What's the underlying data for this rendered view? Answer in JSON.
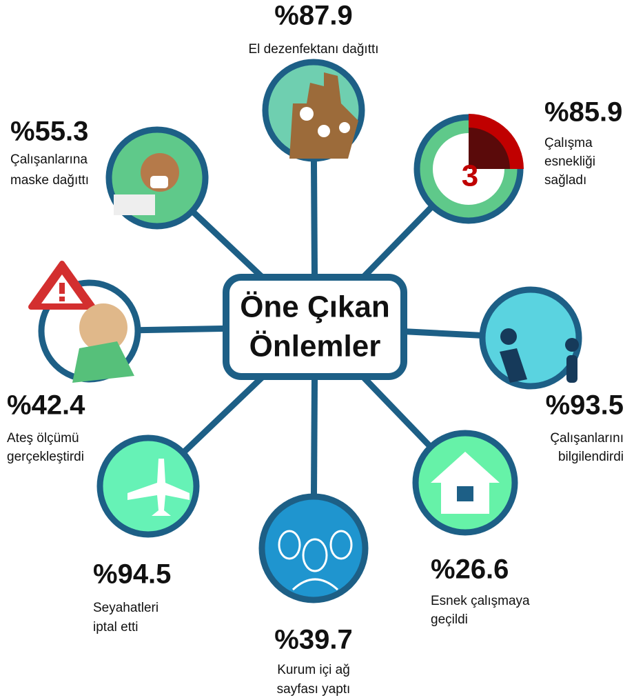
{
  "title_lines": [
    "Öne Çıkan",
    "Önlemler"
  ],
  "items": [
    {
      "value_label": "%87.9",
      "label_lines": [
        "El dezenfektanı dağıttı"
      ]
    },
    {
      "value_label": "%85.9",
      "label_lines": [
        "Çalışma",
        "esnekliği",
        "sağladı"
      ]
    },
    {
      "value_label": "%93.5",
      "label_lines": [
        "Çalışanlarını",
        "bilgilendirdi"
      ]
    },
    {
      "value_label": "%26.6",
      "label_lines": [
        "Esnek çalışmaya",
        "geçildi"
      ]
    },
    {
      "value_label": "%39.7",
      "label_lines": [
        "Kurum içi ağ",
        "sayfası yaptı"
      ]
    },
    {
      "value_label": "%94.5",
      "label_lines": [
        "Seyahatleri",
        "iptal etti"
      ]
    },
    {
      "value_label": "%42.4",
      "label_lines": [
        "Ateş ölçümü",
        "gerçekleştirdi"
      ]
    },
    {
      "value_label": "%55.3",
      "label_lines": [
        "Çalışanlarına",
        "maske dağıttı"
      ]
    }
  ],
  "clock_number": "3"
}
